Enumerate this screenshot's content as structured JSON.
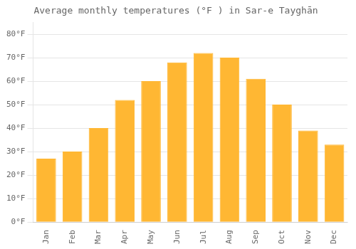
{
  "chart_data": {
    "type": "bar",
    "title": "Average monthly temperatures (°F ) in Sar-e Tayghān",
    "categories": [
      "Jan",
      "Feb",
      "Mar",
      "Apr",
      "May",
      "Jun",
      "Jul",
      "Aug",
      "Sep",
      "Oct",
      "Nov",
      "Dec"
    ],
    "values": [
      27,
      30,
      40,
      52,
      60,
      68,
      72,
      70,
      61,
      50,
      39,
      33
    ],
    "color": "#FFB733",
    "ylim": [
      0,
      85
    ],
    "yticks": [
      {
        "value": 0,
        "label": "0°F"
      },
      {
        "value": 10,
        "label": "10°F"
      },
      {
        "value": 20,
        "label": "20°F"
      },
      {
        "value": 30,
        "label": "30°F"
      },
      {
        "value": 40,
        "label": "40°F"
      },
      {
        "value": 50,
        "label": "50°F"
      },
      {
        "value": 60,
        "label": "60°F"
      },
      {
        "value": 70,
        "label": "70°F"
      },
      {
        "value": 80,
        "label": "80°F"
      }
    ],
    "grid": true
  }
}
